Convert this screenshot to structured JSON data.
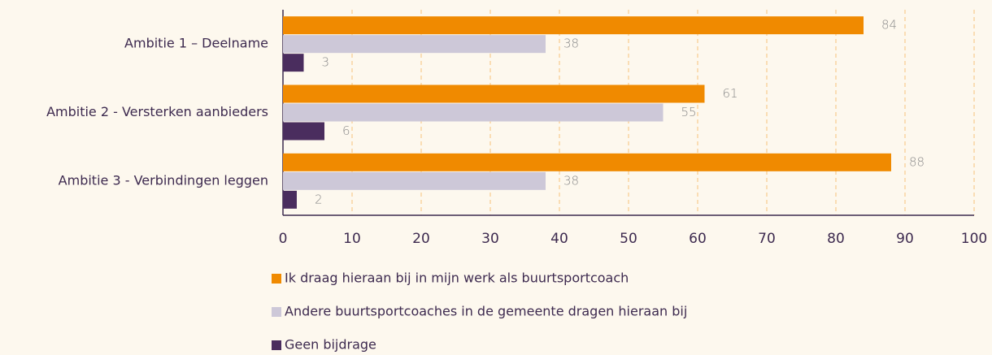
{
  "chart_data": {
    "type": "hbar",
    "categories": [
      "Ambitie 1 – Deelname",
      "Ambitie 2 - Versterken aanbieders",
      "Ambitie 3 - Verbindingen leggen"
    ],
    "series": [
      {
        "name": "Ik draag hieraan bij in mijn werk als buurtsportcoach",
        "color": "#f08a00",
        "values": [
          84,
          61,
          88
        ]
      },
      {
        "name": "Andere buurtsportcoaches in de gemeente dragen hieraan bij",
        "color": "#cdc8d8",
        "values": [
          38,
          55,
          38
        ]
      },
      {
        "name": "Geen bijdrage",
        "color": "#4a2d5e",
        "values": [
          3,
          6,
          2
        ]
      }
    ],
    "xlim": [
      0,
      100
    ],
    "xticks": [
      0,
      10,
      20,
      30,
      40,
      50,
      60,
      70,
      80,
      90,
      100
    ],
    "grid": true,
    "legend": "bottom"
  }
}
